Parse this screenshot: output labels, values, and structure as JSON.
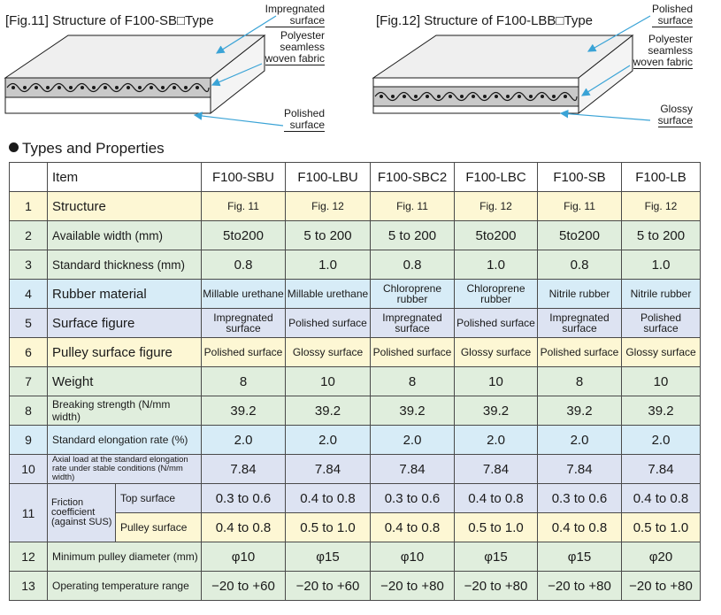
{
  "figures": [
    {
      "id": "fig11",
      "title": "[Fig.11] Structure of F100-SB□Type",
      "callouts": [
        "Impregnated\nsurface",
        "Polyester\nseamless\nwoven fabric",
        "Polished\nsurface"
      ]
    },
    {
      "id": "fig12",
      "title": "[Fig.12] Structure of F100-LBB□Type",
      "callouts": [
        "Polished\nsurface",
        "Polyester\nseamless\nwoven fabric",
        "Glossy\nsurface"
      ]
    }
  ],
  "section_title": "Types and Properties",
  "table": {
    "header": {
      "item": "Item",
      "models": [
        "F100-SBU",
        "F100-LBU",
        "F100-SBC2",
        "F100-LBC",
        "F100-SB",
        "F100-LB"
      ]
    },
    "rows": [
      {
        "num": "1",
        "item": "Structure",
        "values": [
          "Fig. 11",
          "Fig. 12",
          "Fig. 11",
          "Fig. 12",
          "Fig. 11",
          "Fig. 12"
        ]
      },
      {
        "num": "2",
        "item": "Available width (mm)",
        "values": [
          "5to200",
          "5 to 200",
          "5 to 200",
          "5to200",
          "5to200",
          "5 to 200"
        ]
      },
      {
        "num": "3",
        "item": "Standard thickness (mm)",
        "values": [
          "0.8",
          "1.0",
          "0.8",
          "1.0",
          "0.8",
          "1.0"
        ]
      },
      {
        "num": "4",
        "item": "Rubber material",
        "values": [
          "Millable urethane",
          "Millable urethane",
          "Chloroprene rubber",
          "Chloroprene rubber",
          "Nitrile rubber",
          "Nitrile rubber"
        ]
      },
      {
        "num": "5",
        "item": "Surface figure",
        "values": [
          "Impregnated surface",
          "Polished surface",
          "Impregnated surface",
          "Polished surface",
          "Impregnated surface",
          "Polished surface"
        ]
      },
      {
        "num": "6",
        "item": "Pulley surface figure",
        "values": [
          "Polished surface",
          "Glossy surface",
          "Polished surface",
          "Glossy surface",
          "Polished surface",
          "Glossy surface"
        ]
      },
      {
        "num": "7",
        "item": "Weight",
        "values": [
          "8",
          "10",
          "8",
          "10",
          "8",
          "10"
        ]
      },
      {
        "num": "8",
        "item": "Breaking strength (N/mm width)",
        "values": [
          "39.2",
          "39.2",
          "39.2",
          "39.2",
          "39.2",
          "39.2"
        ]
      },
      {
        "num": "9",
        "item": "Standard elongation rate (%)",
        "values": [
          "2.0",
          "2.0",
          "2.0",
          "2.0",
          "2.0",
          "2.0"
        ]
      },
      {
        "num": "10",
        "item": "Axial load at the standard elongation rate under stable conditions (N/mm width)",
        "values": [
          "7.84",
          "7.84",
          "7.84",
          "7.84",
          "7.84",
          "7.84"
        ]
      },
      {
        "num": "11",
        "item": "Friction coefficient (against SUS)",
        "sub": [
          {
            "label": "Top surface",
            "values": [
              "0.3 to 0.6",
              "0.4 to 0.8",
              "0.3 to 0.6",
              "0.4 to 0.8",
              "0.3 to 0.6",
              "0.4 to 0.8"
            ]
          },
          {
            "label": "Pulley surface",
            "values": [
              "0.4 to 0.8",
              "0.5 to 1.0",
              "0.4 to 0.8",
              "0.5 to 1.0",
              "0.4 to 0.8",
              "0.5 to 1.0"
            ]
          }
        ]
      },
      {
        "num": "12",
        "item": "Minimum pulley diameter (mm)",
        "values": [
          "φ10",
          "φ15",
          "φ10",
          "φ15",
          "φ15",
          "φ20"
        ]
      },
      {
        "num": "13",
        "item": "Operating temperature range",
        "values": [
          "−20 to +60",
          "−20 to +60",
          "−20 to +80",
          "−20 to +80",
          "−20 to +80",
          "−20 to +80"
        ]
      }
    ]
  },
  "colors": {
    "yellow": "#fdf7d4",
    "green": "#e0eedd",
    "blue": "#d7ecf7",
    "lavender": "#dde3f2",
    "arrow": "#3aa3d6"
  }
}
